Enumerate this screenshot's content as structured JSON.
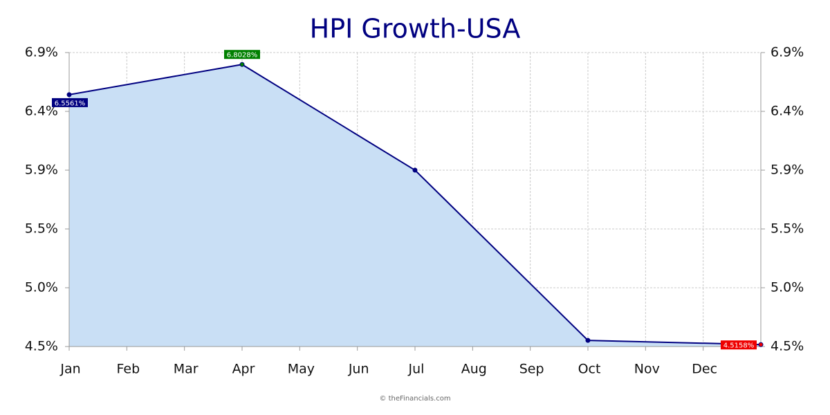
{
  "chart_data": {
    "type": "area",
    "title": "HPI Growth-USA",
    "footer": "© theFinancials.com",
    "xticks": [
      "Jan",
      "Feb",
      "Mar",
      "Apr",
      "May",
      "Jun",
      "Jul",
      "Aug",
      "Sep",
      "Oct",
      "Nov",
      "Dec"
    ],
    "x": [
      "Jan",
      "Apr",
      "Jul",
      "Oct",
      null
    ],
    "values": [
      6.5561,
      6.8028,
      5.94,
      4.55,
      4.5158
    ],
    "value_labels": [
      "6.5561%",
      "6.8028%",
      null,
      null,
      "4.5158%"
    ],
    "label_colors": [
      "#000080",
      "#008000",
      null,
      null,
      "#ee0000"
    ],
    "color": "#000080",
    "fill": "#c9dff5",
    "ylim": [
      4.5,
      6.9
    ],
    "yticks": [
      {
        "value": 4.5,
        "label": "4.5%"
      },
      {
        "value": 4.98,
        "label": "5.0%"
      },
      {
        "value": 5.46,
        "label": "5.5%"
      },
      {
        "value": 5.94,
        "label": "5.9%"
      },
      {
        "value": 6.42,
        "label": "6.4%"
      },
      {
        "value": 6.9,
        "label": "6.9%"
      }
    ],
    "grid": true
  }
}
